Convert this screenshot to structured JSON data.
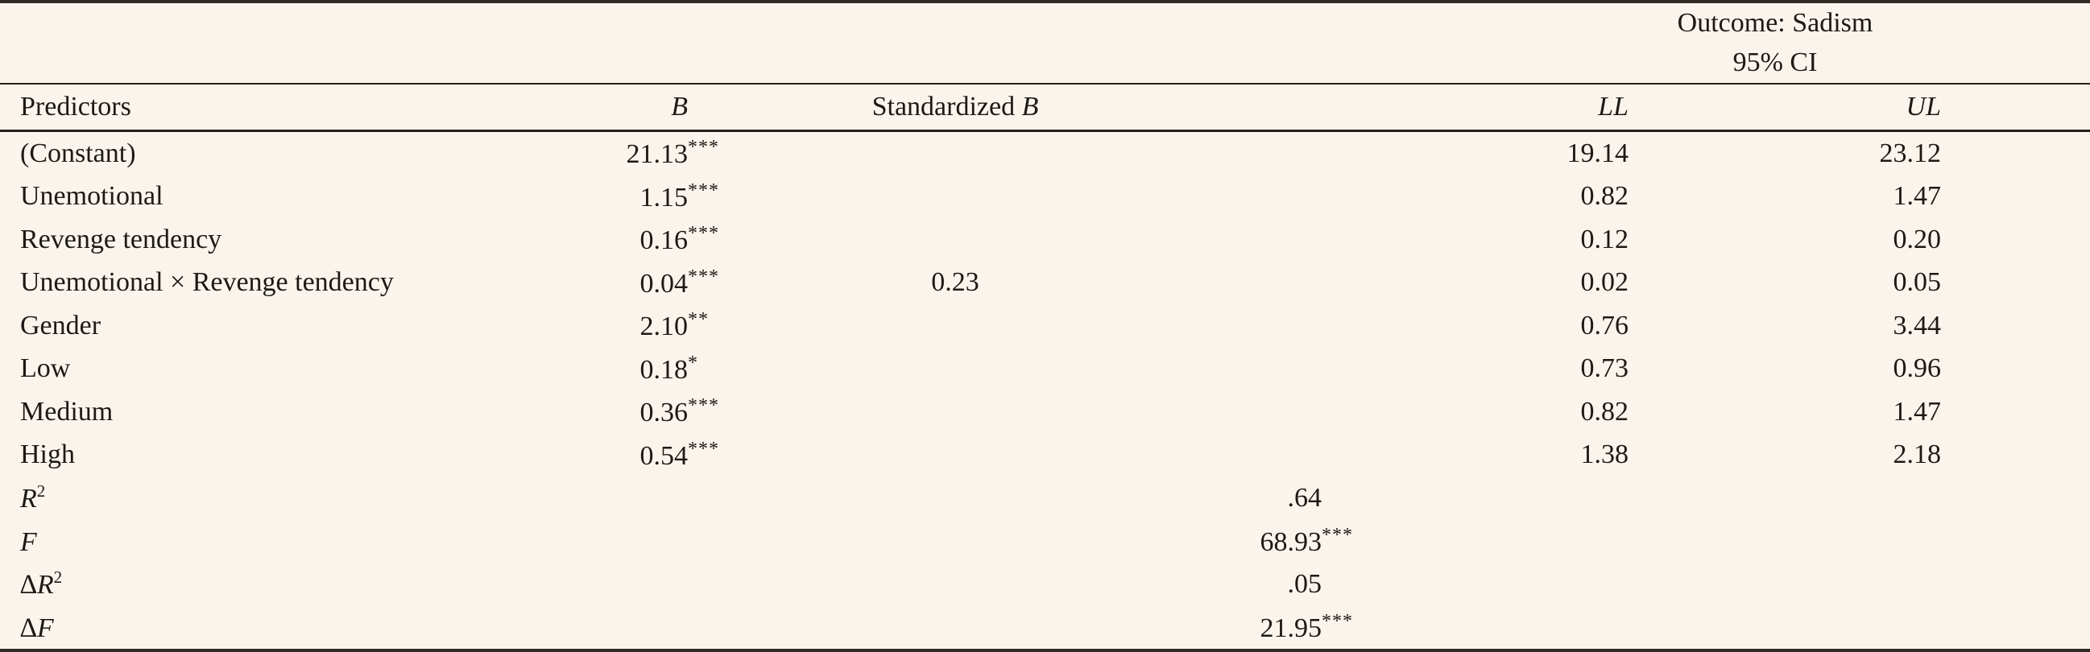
{
  "table": {
    "outcome_header": "Outcome: Sadism",
    "ci_header": "95% CI",
    "columns": {
      "predictors": "Predictors",
      "b": "B",
      "standardized_prefix": "Standardized ",
      "standardized_b": "B",
      "ll": "LL",
      "ul": "UL"
    },
    "rows": [
      {
        "label": "(Constant)",
        "b": "21.13",
        "b_stars": "***",
        "std_b": "",
        "ll": "19.14",
        "ul": "23.12"
      },
      {
        "label": "Unemotional",
        "b": "1.15",
        "b_stars": "***",
        "std_b": "",
        "ll": "0.82",
        "ul": "1.47"
      },
      {
        "label": "Revenge tendency",
        "b": "0.16",
        "b_stars": "***",
        "std_b": "",
        "ll": "0.12",
        "ul": "0.20"
      },
      {
        "label": "Unemotional × Revenge tendency",
        "b": "0.04",
        "b_stars": "***",
        "std_b": "0.23",
        "ll": "0.02",
        "ul": "0.05"
      },
      {
        "label": "Gender",
        "b": "2.10",
        "b_stars": "**",
        "std_b": "",
        "ll": "0.76",
        "ul": "3.44"
      },
      {
        "label": "Low",
        "b": "0.18",
        "b_stars": "*",
        "std_b": "",
        "ll": "0.73",
        "ul": "0.96"
      },
      {
        "label": "Medium",
        "b": "0.36",
        "b_stars": "***",
        "std_b": "",
        "ll": "0.82",
        "ul": "1.47"
      },
      {
        "label": "High",
        "b": "0.54",
        "b_stars": "***",
        "std_b": "",
        "ll": "1.38",
        "ul": "2.18"
      }
    ],
    "stats": [
      {
        "prefix": "",
        "base": "R",
        "sup": "2",
        "value": ".64",
        "stars": ""
      },
      {
        "prefix": "",
        "base": "F",
        "sup": "",
        "value": "68.93",
        "stars": "***"
      },
      {
        "prefix": "∆",
        "base": "R",
        "sup": "2",
        "value": ".05",
        "stars": ""
      },
      {
        "prefix": "∆",
        "base": "F",
        "sup": "",
        "value": "21.95",
        "stars": "***"
      }
    ]
  },
  "colors": {
    "background": "#faf4ec",
    "text": "#1d1916",
    "rule": "#2e2b27"
  }
}
